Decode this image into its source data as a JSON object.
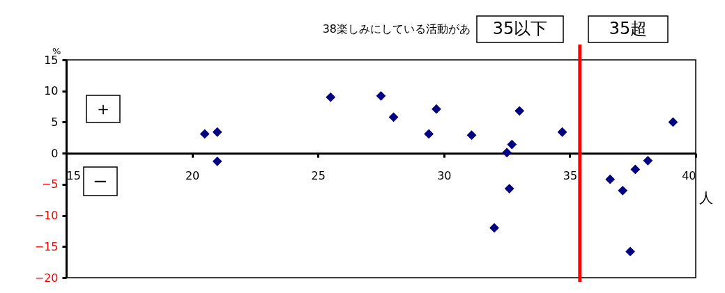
{
  "chart_data": {
    "type": "scatter",
    "title": "38楽しみにしている活動があ",
    "xlabel": "人",
    "ylabel": "%",
    "series": [
      {
        "color": "#000080",
        "x": [
          20.5,
          21.0,
          21.0,
          25.5,
          27.5,
          28.0,
          29.7,
          29.4,
          31.1,
          32.0,
          32.5,
          32.7,
          32.6,
          33.0,
          34.7,
          36.6,
          37.1,
          37.4,
          37.6,
          38.1,
          39.1
        ],
        "values": [
          3.1,
          3.4,
          -1.3,
          9.0,
          9.2,
          5.8,
          7.1,
          3.1,
          2.9,
          -12.0,
          0.1,
          1.4,
          -5.7,
          6.8,
          3.4,
          -4.2,
          -6.0,
          -15.8,
          -2.6,
          -1.2,
          5.0
        ]
      }
    ],
    "xlim": [
      15,
      40
    ],
    "xticks": [
      15,
      20,
      25,
      30,
      35,
      40
    ],
    "ylim": [
      -20,
      15
    ],
    "yticks": [
      -20,
      -15,
      -10,
      -5,
      0,
      5,
      10,
      15
    ],
    "ref_lines": [
      {
        "axis": "x",
        "value": 35.4,
        "color": "#ff0000"
      }
    ],
    "annotations": [
      "35以下",
      "35超",
      "＋",
      "−"
    ],
    "marker": "diamond",
    "grid": false
  }
}
